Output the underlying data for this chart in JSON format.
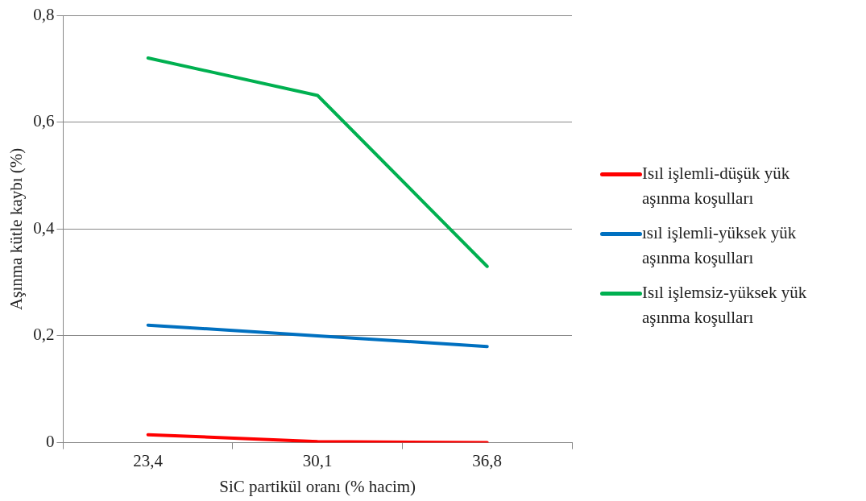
{
  "chart_data": {
    "type": "line",
    "xlabel": "SiC partikül oranı (% hacim)",
    "ylabel": "Aşınma kütle kaybı (%)",
    "categories": [
      "23,4",
      "30,1",
      "36,8"
    ],
    "series": [
      {
        "name": "Isıl işlemli-düşük yük aşınma koşulları",
        "color": "#ff0000",
        "values": [
          0.015,
          0.002,
          0
        ]
      },
      {
        "name": "ısıl işlemli-yüksek yük aşınma koşulları",
        "color": "#0070c0",
        "values": [
          0.22,
          0.2,
          0.18
        ]
      },
      {
        "name": "Isıl işlemsiz-yüksek yük aşınma koşulları",
        "color": "#00b050",
        "values": [
          0.72,
          0.65,
          0.33
        ]
      }
    ],
    "ylim": [
      0,
      0.8
    ],
    "yticks": [
      {
        "value": 0,
        "label": "0"
      },
      {
        "value": 0.2,
        "label": "0,2"
      },
      {
        "value": 0.4,
        "label": "0,4"
      },
      {
        "value": 0.6,
        "label": "0,6"
      },
      {
        "value": 0.8,
        "label": "0,8"
      }
    ],
    "grid": "y",
    "legend": "right",
    "marker": "none"
  }
}
